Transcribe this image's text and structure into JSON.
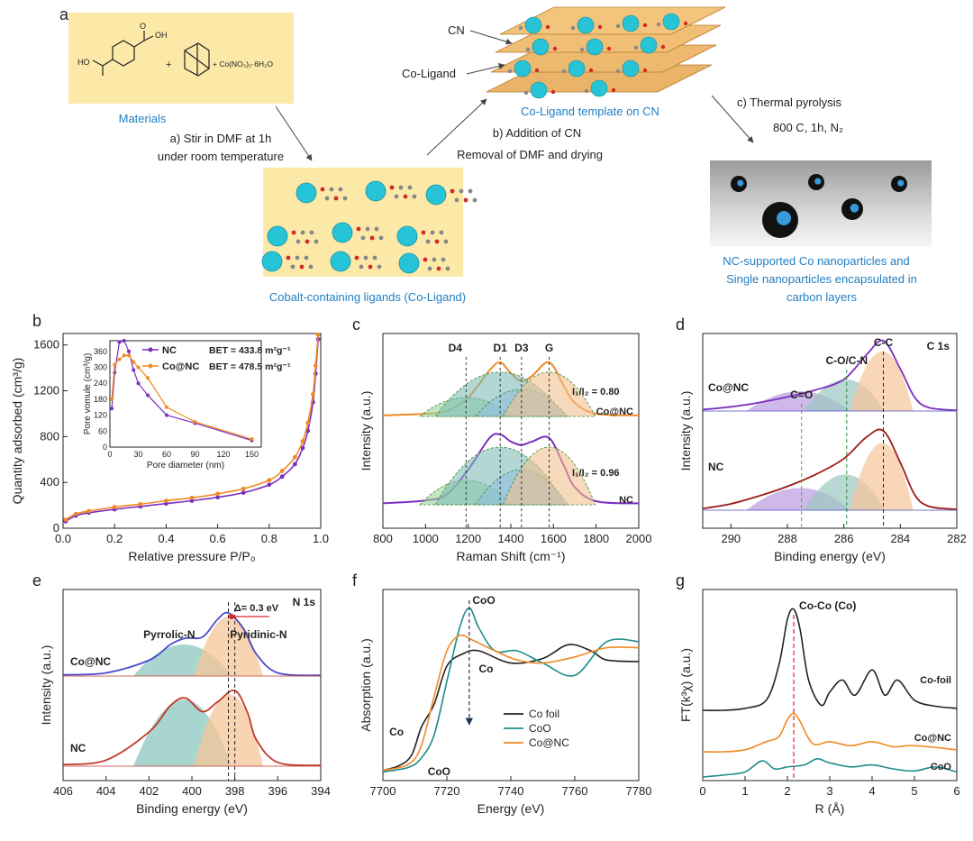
{
  "panel_a": {
    "label": "a",
    "materials": "Materials",
    "chem_hooc": "HO",
    "chem_oh": "OH",
    "chem_o": "O",
    "chem_plus": "+",
    "chem_co_salt": "+ Co(NO₃)₂·6H₂O",
    "step_a_1": "a) Stir in DMF at 1h",
    "step_a_2": "under room temperature",
    "step_b_1": "b) Addition of CN",
    "step_b_2": "Removal of DMF and drying",
    "step_c_1": "c) Thermal pyrolysis",
    "step_c_2": "800 C, 1h, N₂",
    "cn_label": "CN",
    "coligand_label": "Co-Ligand",
    "template_caption": "Co-Ligand template on CN",
    "ligand_caption": "Cobalt-containing ligands (Co-Ligand)",
    "product_caption_1": "NC-supported Co nanoparticles and",
    "product_caption_2": "Single  nanoparticles  encapsulated in",
    "product_caption_3": "carbon layers"
  },
  "colors": {
    "purple": "#7B2FBE",
    "orange": "#F08A24",
    "teal": "#1F8C8C",
    "blue_text": "#1F7EC2",
    "cream": "#FCE9A8",
    "red": "#D62828",
    "black": "#222222"
  },
  "chart_data": [
    {
      "id": "b",
      "type": "line",
      "label": "b",
      "xlabel": "Relative pressure P/P₀",
      "ylabel": "Quantity adsorbed (cm³/g)",
      "xlim": [
        0,
        1
      ],
      "ylim": [
        0,
        1700
      ],
      "xticks": [
        "0.0",
        "0.2",
        "0.4",
        "0.6",
        "0.8",
        "1.0"
      ],
      "yticks": [
        "0",
        "400",
        "800",
        "1200",
        "1600"
      ],
      "legend": [
        {
          "name": "NC",
          "bet": "BET = 433.8 m²g⁻¹"
        },
        {
          "name": "Co@NC",
          "bet": "BET = 478.5 m²g⁻¹"
        }
      ],
      "series": [
        {
          "name": "NC",
          "x": [
            0.01,
            0.05,
            0.1,
            0.2,
            0.3,
            0.4,
            0.5,
            0.6,
            0.7,
            0.8,
            0.85,
            0.9,
            0.93,
            0.95,
            0.97,
            0.98,
            0.99
          ],
          "y": [
            60,
            110,
            135,
            165,
            190,
            215,
            240,
            270,
            310,
            380,
            450,
            560,
            700,
            850,
            1100,
            1350,
            1650
          ]
        },
        {
          "name": "Co@NC",
          "x": [
            0.01,
            0.05,
            0.1,
            0.2,
            0.3,
            0.4,
            0.5,
            0.6,
            0.7,
            0.8,
            0.85,
            0.9,
            0.93,
            0.95,
            0.97,
            0.98,
            0.99
          ],
          "y": [
            75,
            125,
            150,
            185,
            210,
            240,
            265,
            300,
            345,
            420,
            500,
            620,
            760,
            920,
            1170,
            1420,
            1690
          ]
        }
      ],
      "inset": {
        "xlabel": "Pore diameter (nm)",
        "ylabel": "Pore vomule (cm³/g)",
        "xlim": [
          0,
          160
        ],
        "ylim": [
          0,
          400
        ],
        "xticks": [
          "0",
          "30",
          "60",
          "90",
          "120",
          "150"
        ],
        "yticks": [
          "0",
          "60",
          "120",
          "180",
          "240",
          "300",
          "360"
        ],
        "series": [
          {
            "name": "NC",
            "x": [
              2,
              5,
              10,
              15,
              20,
              25,
              30,
              40,
              60,
              90,
              150
            ],
            "y": [
              145,
              280,
              395,
              400,
              360,
              290,
              240,
              195,
              120,
              90,
              25
            ]
          },
          {
            "name": "Co@NC",
            "x": [
              2,
              5,
              10,
              15,
              20,
              25,
              30,
              40,
              60,
              90,
              150
            ],
            "y": [
              180,
              310,
              330,
              345,
              345,
              320,
              300,
              260,
              150,
              95,
              30
            ]
          }
        ]
      }
    },
    {
      "id": "c",
      "type": "line",
      "label": "c",
      "xlabel": "Raman Shift (cm⁻¹)",
      "ylabel": "Intensity (a.u.)",
      "xlim": [
        800,
        2000
      ],
      "xticks": [
        "800",
        "1000",
        "1200",
        "1400",
        "1600",
        "1800",
        "2000"
      ],
      "peaks": [
        "D4",
        "D1",
        "D3",
        "G"
      ],
      "peak_positions": [
        1190,
        1350,
        1450,
        1580
      ],
      "ratio_conc": "I₁/I₂ = 0.80",
      "ratio_nc": "I₁/I₂ = 0.96",
      "series": [
        {
          "name": "Co@NC",
          "x": [
            800,
            1000,
            1100,
            1200,
            1300,
            1350,
            1400,
            1450,
            1500,
            1580,
            1650,
            1700,
            1800,
            2000
          ],
          "y": [
            0.02,
            0.05,
            0.1,
            0.35,
            0.85,
            1.0,
            0.8,
            0.65,
            0.75,
            1.0,
            0.55,
            0.25,
            0.05,
            0.02
          ]
        },
        {
          "name": "NC",
          "x": [
            800,
            1000,
            1100,
            1200,
            1300,
            1350,
            1400,
            1450,
            1500,
            1580,
            1650,
            1700,
            1800,
            2000
          ],
          "y": [
            0.02,
            0.06,
            0.15,
            0.5,
            0.95,
            1.0,
            0.9,
            0.85,
            0.9,
            0.95,
            0.55,
            0.25,
            0.05,
            0.02
          ]
        }
      ],
      "labels": [
        "Co@NC",
        "NC"
      ]
    },
    {
      "id": "d",
      "type": "line",
      "label": "d",
      "title": "C 1s",
      "xlabel": "Binding energy (eV)",
      "ylabel": "Intensity (a.u.)",
      "xlim": [
        291,
        282
      ],
      "xticks": [
        "290",
        "288",
        "286",
        "284",
        "282"
      ],
      "bond_labels": [
        "C=O",
        "C-O/C-N",
        "C-C"
      ],
      "bond_positions": [
        287.5,
        285.9,
        284.6
      ],
      "series": [
        {
          "name": "Co@NC",
          "x": [
            291,
            290,
            289,
            288,
            287,
            286,
            285.2,
            284.6,
            284,
            283.5,
            283,
            282
          ],
          "y": [
            0.02,
            0.06,
            0.12,
            0.2,
            0.3,
            0.45,
            0.8,
            1.0,
            0.6,
            0.2,
            0.05,
            0.01
          ]
        },
        {
          "name": "NC",
          "x": [
            291,
            290,
            289,
            288,
            287,
            286,
            285.2,
            284.6,
            284,
            283.5,
            283,
            282
          ],
          "y": [
            0.02,
            0.08,
            0.18,
            0.3,
            0.45,
            0.65,
            0.92,
            1.0,
            0.6,
            0.2,
            0.05,
            0.01
          ]
        }
      ],
      "labels": [
        "Co@NC",
        "NC"
      ]
    },
    {
      "id": "e",
      "type": "line",
      "label": "e",
      "title": "N 1s",
      "xlabel": "Binding energy (eV)",
      "ylabel": "Intensity (a.u.)",
      "xlim": [
        406,
        394
      ],
      "xticks": [
        "406",
        "404",
        "402",
        "400",
        "398",
        "396",
        "394"
      ],
      "peak_labels": [
        "Pyrrolic-N",
        "Pyridinic-N"
      ],
      "delta": "Δ= 0.3 eV",
      "series": [
        {
          "name": "Co@NC",
          "x": [
            406,
            404,
            402,
            401,
            400.3,
            399.5,
            398.8,
            398.3,
            397.6,
            397,
            396,
            394
          ],
          "y": [
            0.02,
            0.05,
            0.25,
            0.5,
            0.6,
            0.62,
            0.9,
            1.0,
            0.75,
            0.35,
            0.05,
            0.01
          ]
        },
        {
          "name": "NC",
          "x": [
            406,
            404,
            402,
            401,
            400.3,
            399.5,
            398.8,
            398.0,
            397.4,
            397,
            396,
            394
          ],
          "y": [
            0.02,
            0.08,
            0.45,
            0.8,
            0.9,
            0.72,
            0.85,
            1.0,
            0.7,
            0.35,
            0.05,
            0.01
          ]
        }
      ],
      "labels": [
        "Co@NC",
        "NC"
      ]
    },
    {
      "id": "f",
      "type": "line",
      "label": "f",
      "xlabel": "Energy (eV)",
      "ylabel": "Absorption (a.u.)",
      "xlim": [
        7700,
        7780
      ],
      "xticks": [
        "7700",
        "7720",
        "7740",
        "7760",
        "7780"
      ],
      "annotations": [
        "CoO",
        "Co",
        "Co",
        "CoO"
      ],
      "legend": [
        "Co foil",
        "CoO",
        "Co@NC"
      ],
      "series": [
        {
          "name": "Co foil",
          "x": [
            7700,
            7705,
            7709,
            7712,
            7716,
            7720,
            7725,
            7730,
            7740,
            7750,
            7758,
            7765,
            7770,
            7780
          ],
          "y": [
            0.02,
            0.05,
            0.12,
            0.3,
            0.45,
            0.7,
            0.78,
            0.8,
            0.72,
            0.75,
            0.84,
            0.8,
            0.74,
            0.73
          ]
        },
        {
          "name": "CoO",
          "x": [
            7700,
            7708,
            7712,
            7716,
            7720,
            7724,
            7727,
            7730,
            7735,
            7742,
            7750,
            7760,
            7770,
            7780
          ],
          "y": [
            0.01,
            0.04,
            0.1,
            0.25,
            0.6,
            0.95,
            1.08,
            0.95,
            0.8,
            0.8,
            0.72,
            0.64,
            0.86,
            0.86
          ]
        },
        {
          "name": "Co@NC",
          "x": [
            7700,
            7708,
            7712,
            7716,
            7720,
            7724,
            7728,
            7735,
            7742,
            7750,
            7760,
            7770,
            7780
          ],
          "y": [
            0.02,
            0.06,
            0.18,
            0.5,
            0.8,
            0.9,
            0.87,
            0.8,
            0.74,
            0.72,
            0.76,
            0.82,
            0.82
          ]
        }
      ]
    },
    {
      "id": "g",
      "type": "line",
      "label": "g",
      "xlabel": "R (Å)",
      "ylabel": "FT(k³χ) (a.u.)",
      "xlim": [
        0,
        6
      ],
      "xticks": [
        "0",
        "1",
        "2",
        "3",
        "4",
        "5",
        "6"
      ],
      "peak_label": "Co-Co (Co)",
      "peak_position": 2.15,
      "labels": [
        "Co-foil",
        "Co@NC",
        "CoO"
      ],
      "series": [
        {
          "name": "Co-foil",
          "x": [
            0,
            0.5,
            1,
            1.5,
            1.8,
            2.0,
            2.15,
            2.3,
            2.5,
            2.8,
            3.0,
            3.3,
            3.6,
            4.0,
            4.3,
            4.6,
            5.0,
            5.5,
            6.0
          ],
          "y": [
            0.0,
            0.0,
            0.02,
            0.1,
            0.45,
            0.9,
            1.0,
            0.8,
            0.3,
            0.05,
            0.18,
            0.3,
            0.15,
            0.4,
            0.15,
            0.3,
            0.1,
            0.04,
            0.02
          ]
        },
        {
          "name": "Co@NC",
          "x": [
            0,
            0.5,
            1,
            1.5,
            1.8,
            2.0,
            2.15,
            2.3,
            2.6,
            3.0,
            3.5,
            4.0,
            4.5,
            5.0,
            6.0
          ],
          "y": [
            0.0,
            0.0,
            0.02,
            0.1,
            0.15,
            0.32,
            0.38,
            0.3,
            0.08,
            0.1,
            0.06,
            0.1,
            0.05,
            0.06,
            0.02
          ]
        },
        {
          "name": "CoO",
          "x": [
            0,
            0.5,
            1,
            1.4,
            1.7,
            2.0,
            2.4,
            2.7,
            3.0,
            3.5,
            4.0,
            4.5,
            5.0,
            5.5,
            6.0
          ],
          "y": [
            0.0,
            0.02,
            0.05,
            0.16,
            0.08,
            0.1,
            0.12,
            0.18,
            0.14,
            0.1,
            0.12,
            0.08,
            0.06,
            0.1,
            0.05
          ]
        }
      ]
    }
  ]
}
